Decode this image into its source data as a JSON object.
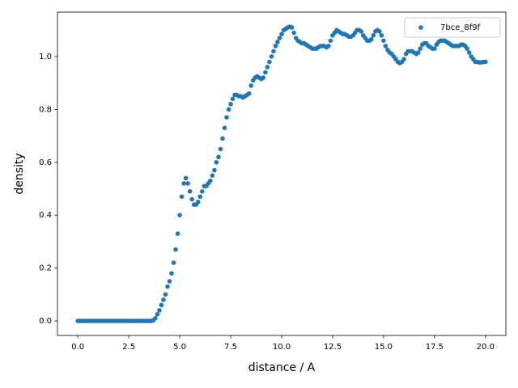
{
  "chart_data": {
    "type": "scatter",
    "xlabel": "distance / A",
    "ylabel": "density",
    "x": [
      0,
      0.1,
      0.2,
      0.3,
      0.4,
      0.5,
      0.6,
      0.7,
      0.8,
      0.9,
      1,
      1.1,
      1.2,
      1.3,
      1.4,
      1.5,
      1.6,
      1.7,
      1.8,
      1.9,
      2,
      2.1,
      2.2,
      2.3,
      2.4,
      2.5,
      2.6,
      2.7,
      2.8,
      2.9,
      3,
      3.1,
      3.2,
      3.3,
      3.4,
      3.5,
      3.6,
      3.7,
      3.8,
      3.9,
      4,
      4.1,
      4.2,
      4.3,
      4.4,
      4.5,
      4.6,
      4.7,
      4.8,
      4.9,
      5,
      5.1,
      5.2,
      5.3,
      5.4,
      5.5,
      5.6,
      5.7,
      5.8,
      5.9,
      6,
      6.1,
      6.2,
      6.3,
      6.4,
      6.5,
      6.6,
      6.7,
      6.8,
      6.9,
      7,
      7.1,
      7.2,
      7.3,
      7.4,
      7.5,
      7.6,
      7.7,
      7.8,
      7.9,
      8,
      8.1,
      8.2,
      8.3,
      8.4,
      8.5,
      8.6,
      8.7,
      8.8,
      8.9,
      9,
      9.1,
      9.2,
      9.3,
      9.4,
      9.5,
      9.6,
      9.7,
      9.8,
      9.9,
      10,
      10.1,
      10.2,
      10.3,
      10.4,
      10.5,
      10.6,
      10.7,
      10.8,
      10.9,
      11,
      11.1,
      11.2,
      11.3,
      11.4,
      11.5,
      11.6,
      11.7,
      11.8,
      11.9,
      12,
      12.1,
      12.2,
      12.3,
      12.4,
      12.5,
      12.6,
      12.7,
      12.8,
      12.9,
      13,
      13.1,
      13.2,
      13.3,
      13.4,
      13.5,
      13.6,
      13.7,
      13.8,
      13.9,
      14,
      14.1,
      14.2,
      14.3,
      14.4,
      14.5,
      14.6,
      14.7,
      14.8,
      14.9,
      15,
      15.1,
      15.2,
      15.3,
      15.4,
      15.5,
      15.6,
      15.7,
      15.8,
      15.9,
      16,
      16.1,
      16.2,
      16.3,
      16.4,
      16.5,
      16.6,
      16.7,
      16.8,
      16.9,
      17,
      17.1,
      17.2,
      17.3,
      17.4,
      17.5,
      17.6,
      17.7,
      17.8,
      17.9,
      18,
      18.1,
      18.2,
      18.3,
      18.4,
      18.5,
      18.6,
      18.7,
      18.8,
      18.9,
      19,
      19.1,
      19.2,
      19.3,
      19.4,
      19.5,
      19.6,
      19.7,
      19.8,
      19.9,
      20
    ],
    "series": [
      {
        "name": "7bce_8f9f",
        "color": "#1f77b4",
        "values": [
          0,
          0,
          0,
          0,
          0,
          0,
          0,
          0,
          0,
          0,
          0,
          0,
          0,
          0,
          0,
          0,
          0,
          0,
          0,
          0,
          0,
          0,
          0,
          0,
          0,
          0,
          0,
          0,
          0,
          0,
          0,
          0,
          0,
          0,
          0,
          0,
          0,
          0.002,
          0.01,
          0.025,
          0.04,
          0.06,
          0.08,
          0.1,
          0.13,
          0.15,
          0.18,
          0.22,
          0.27,
          0.33,
          0.4,
          0.47,
          0.52,
          0.54,
          0.52,
          0.49,
          0.46,
          0.44,
          0.44,
          0.45,
          0.47,
          0.49,
          0.51,
          0.51,
          0.52,
          0.53,
          0.55,
          0.57,
          0.6,
          0.62,
          0.65,
          0.69,
          0.73,
          0.77,
          0.8,
          0.82,
          0.84,
          0.855,
          0.855,
          0.85,
          0.85,
          0.845,
          0.85,
          0.855,
          0.86,
          0.89,
          0.91,
          0.92,
          0.925,
          0.92,
          0.915,
          0.92,
          0.94,
          0.96,
          0.98,
          1.0,
          1.02,
          1.04,
          1.055,
          1.07,
          1.085,
          1.1,
          1.105,
          1.11,
          1.113,
          1.11,
          1.09,
          1.07,
          1.06,
          1.055,
          1.05,
          1.05,
          1.045,
          1.04,
          1.035,
          1.03,
          1.03,
          1.03,
          1.035,
          1.04,
          1.04,
          1.04,
          1.035,
          1.04,
          1.06,
          1.08,
          1.09,
          1.1,
          1.095,
          1.09,
          1.085,
          1.085,
          1.08,
          1.075,
          1.075,
          1.08,
          1.09,
          1.1,
          1.1,
          1.095,
          1.08,
          1.07,
          1.06,
          1.06,
          1.065,
          1.08,
          1.095,
          1.1,
          1.095,
          1.08,
          1.06,
          1.04,
          1.025,
          1.015,
          1.01,
          1.0,
          0.99,
          0.98,
          0.975,
          0.98,
          0.99,
          1.01,
          1.02,
          1.02,
          1.02,
          1.015,
          1.01,
          1.015,
          1.03,
          1.045,
          1.05,
          1.05,
          1.04,
          1.035,
          1.03,
          1.03,
          1.045,
          1.055,
          1.06,
          1.06,
          1.06,
          1.055,
          1.05,
          1.045,
          1.04,
          1.04,
          1.04,
          1.04,
          1.045,
          1.045,
          1.04,
          1.03,
          1.015,
          1.0,
          0.99,
          0.98,
          0.98,
          0.978,
          0.978,
          0.98,
          0.98
        ]
      }
    ],
    "xlim": [
      -1,
      21
    ],
    "ylim": [
      -0.055,
      1.168
    ],
    "xticks": [
      {
        "value": 0,
        "label": "0.0"
      },
      2.5,
      {
        "value": 5,
        "label": "5.0"
      },
      7.5,
      {
        "value": 10,
        "label": "10.0"
      },
      12.5,
      {
        "value": 15,
        "label": "15.0"
      },
      17.5,
      {
        "value": 20,
        "label": "20.0"
      }
    ],
    "yticks": [
      {
        "value": 0,
        "label": "0.0"
      },
      0.2,
      0.4,
      0.6,
      0.8,
      {
        "value": 1,
        "label": "1.0"
      }
    ],
    "grid": false,
    "legend": "upper right"
  }
}
